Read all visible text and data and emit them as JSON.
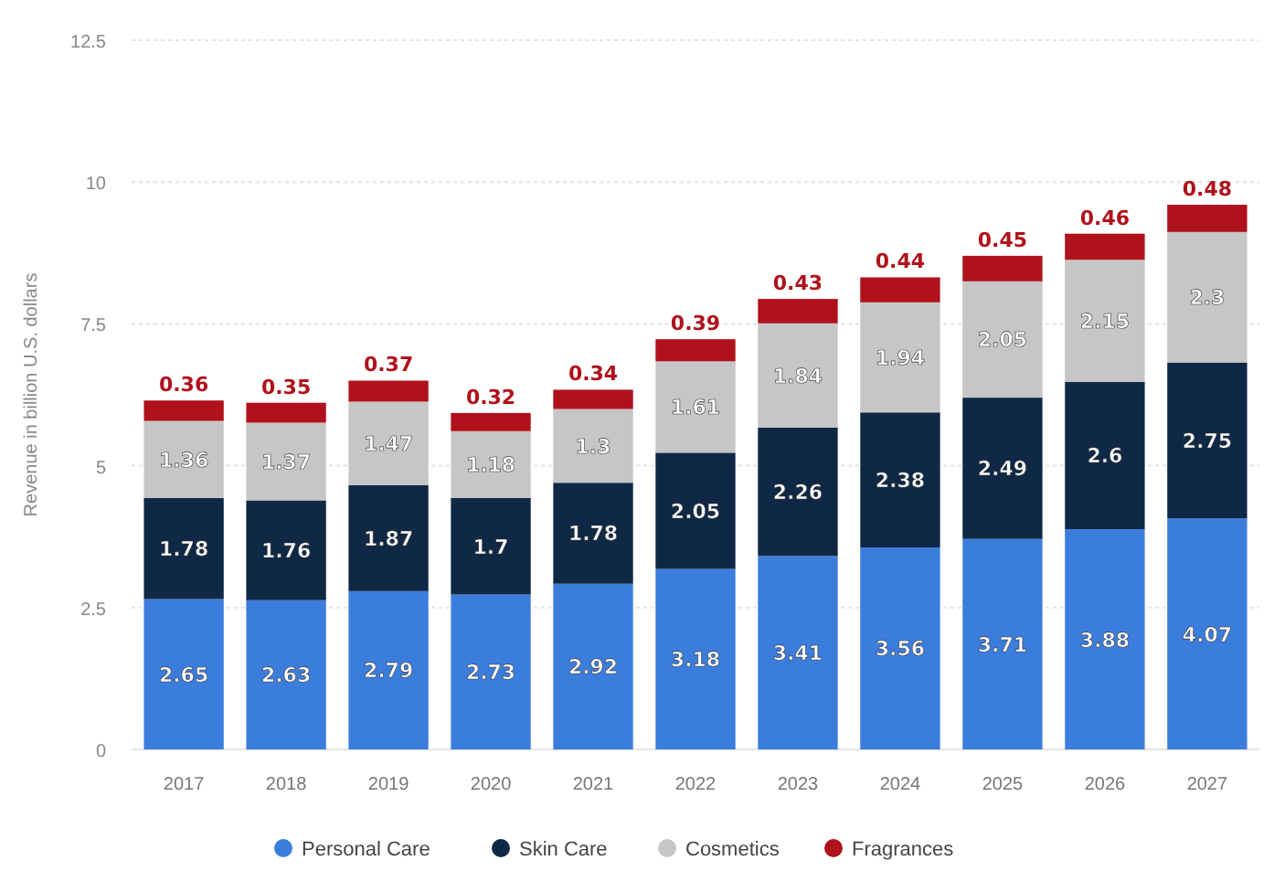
{
  "chart_data": {
    "type": "bar",
    "stacked": true,
    "ylabel": "Revenue in billion U.S. dollars",
    "categories": [
      "2017",
      "2018",
      "2019",
      "2020",
      "2021",
      "2022",
      "2023",
      "2024",
      "2025",
      "2026",
      "2027"
    ],
    "series": [
      {
        "name": "Personal Care",
        "color": "#3b7ddd",
        "values": [
          2.65,
          2.63,
          2.79,
          2.73,
          2.92,
          3.18,
          3.41,
          3.56,
          3.71,
          3.88,
          4.07
        ]
      },
      {
        "name": "Skin Care",
        "color": "#0f2846",
        "values": [
          1.78,
          1.76,
          1.87,
          1.7,
          1.78,
          2.05,
          2.26,
          2.38,
          2.49,
          2.6,
          2.75
        ]
      },
      {
        "name": "Cosmetics",
        "color": "#c6c6c6",
        "values": [
          1.36,
          1.37,
          1.47,
          1.18,
          1.3,
          1.61,
          1.84,
          1.94,
          2.05,
          2.15,
          2.3
        ]
      },
      {
        "name": "Fragrances",
        "color": "#b0121b",
        "values": [
          0.36,
          0.35,
          0.37,
          0.32,
          0.34,
          0.39,
          0.43,
          0.44,
          0.45,
          0.46,
          0.48
        ]
      }
    ],
    "ylim": [
      0,
      12.5
    ],
    "yticks": [
      0,
      2.5,
      5,
      7.5,
      10,
      12.5
    ],
    "grid": "y",
    "legend": "bottom",
    "data_labels": true
  }
}
